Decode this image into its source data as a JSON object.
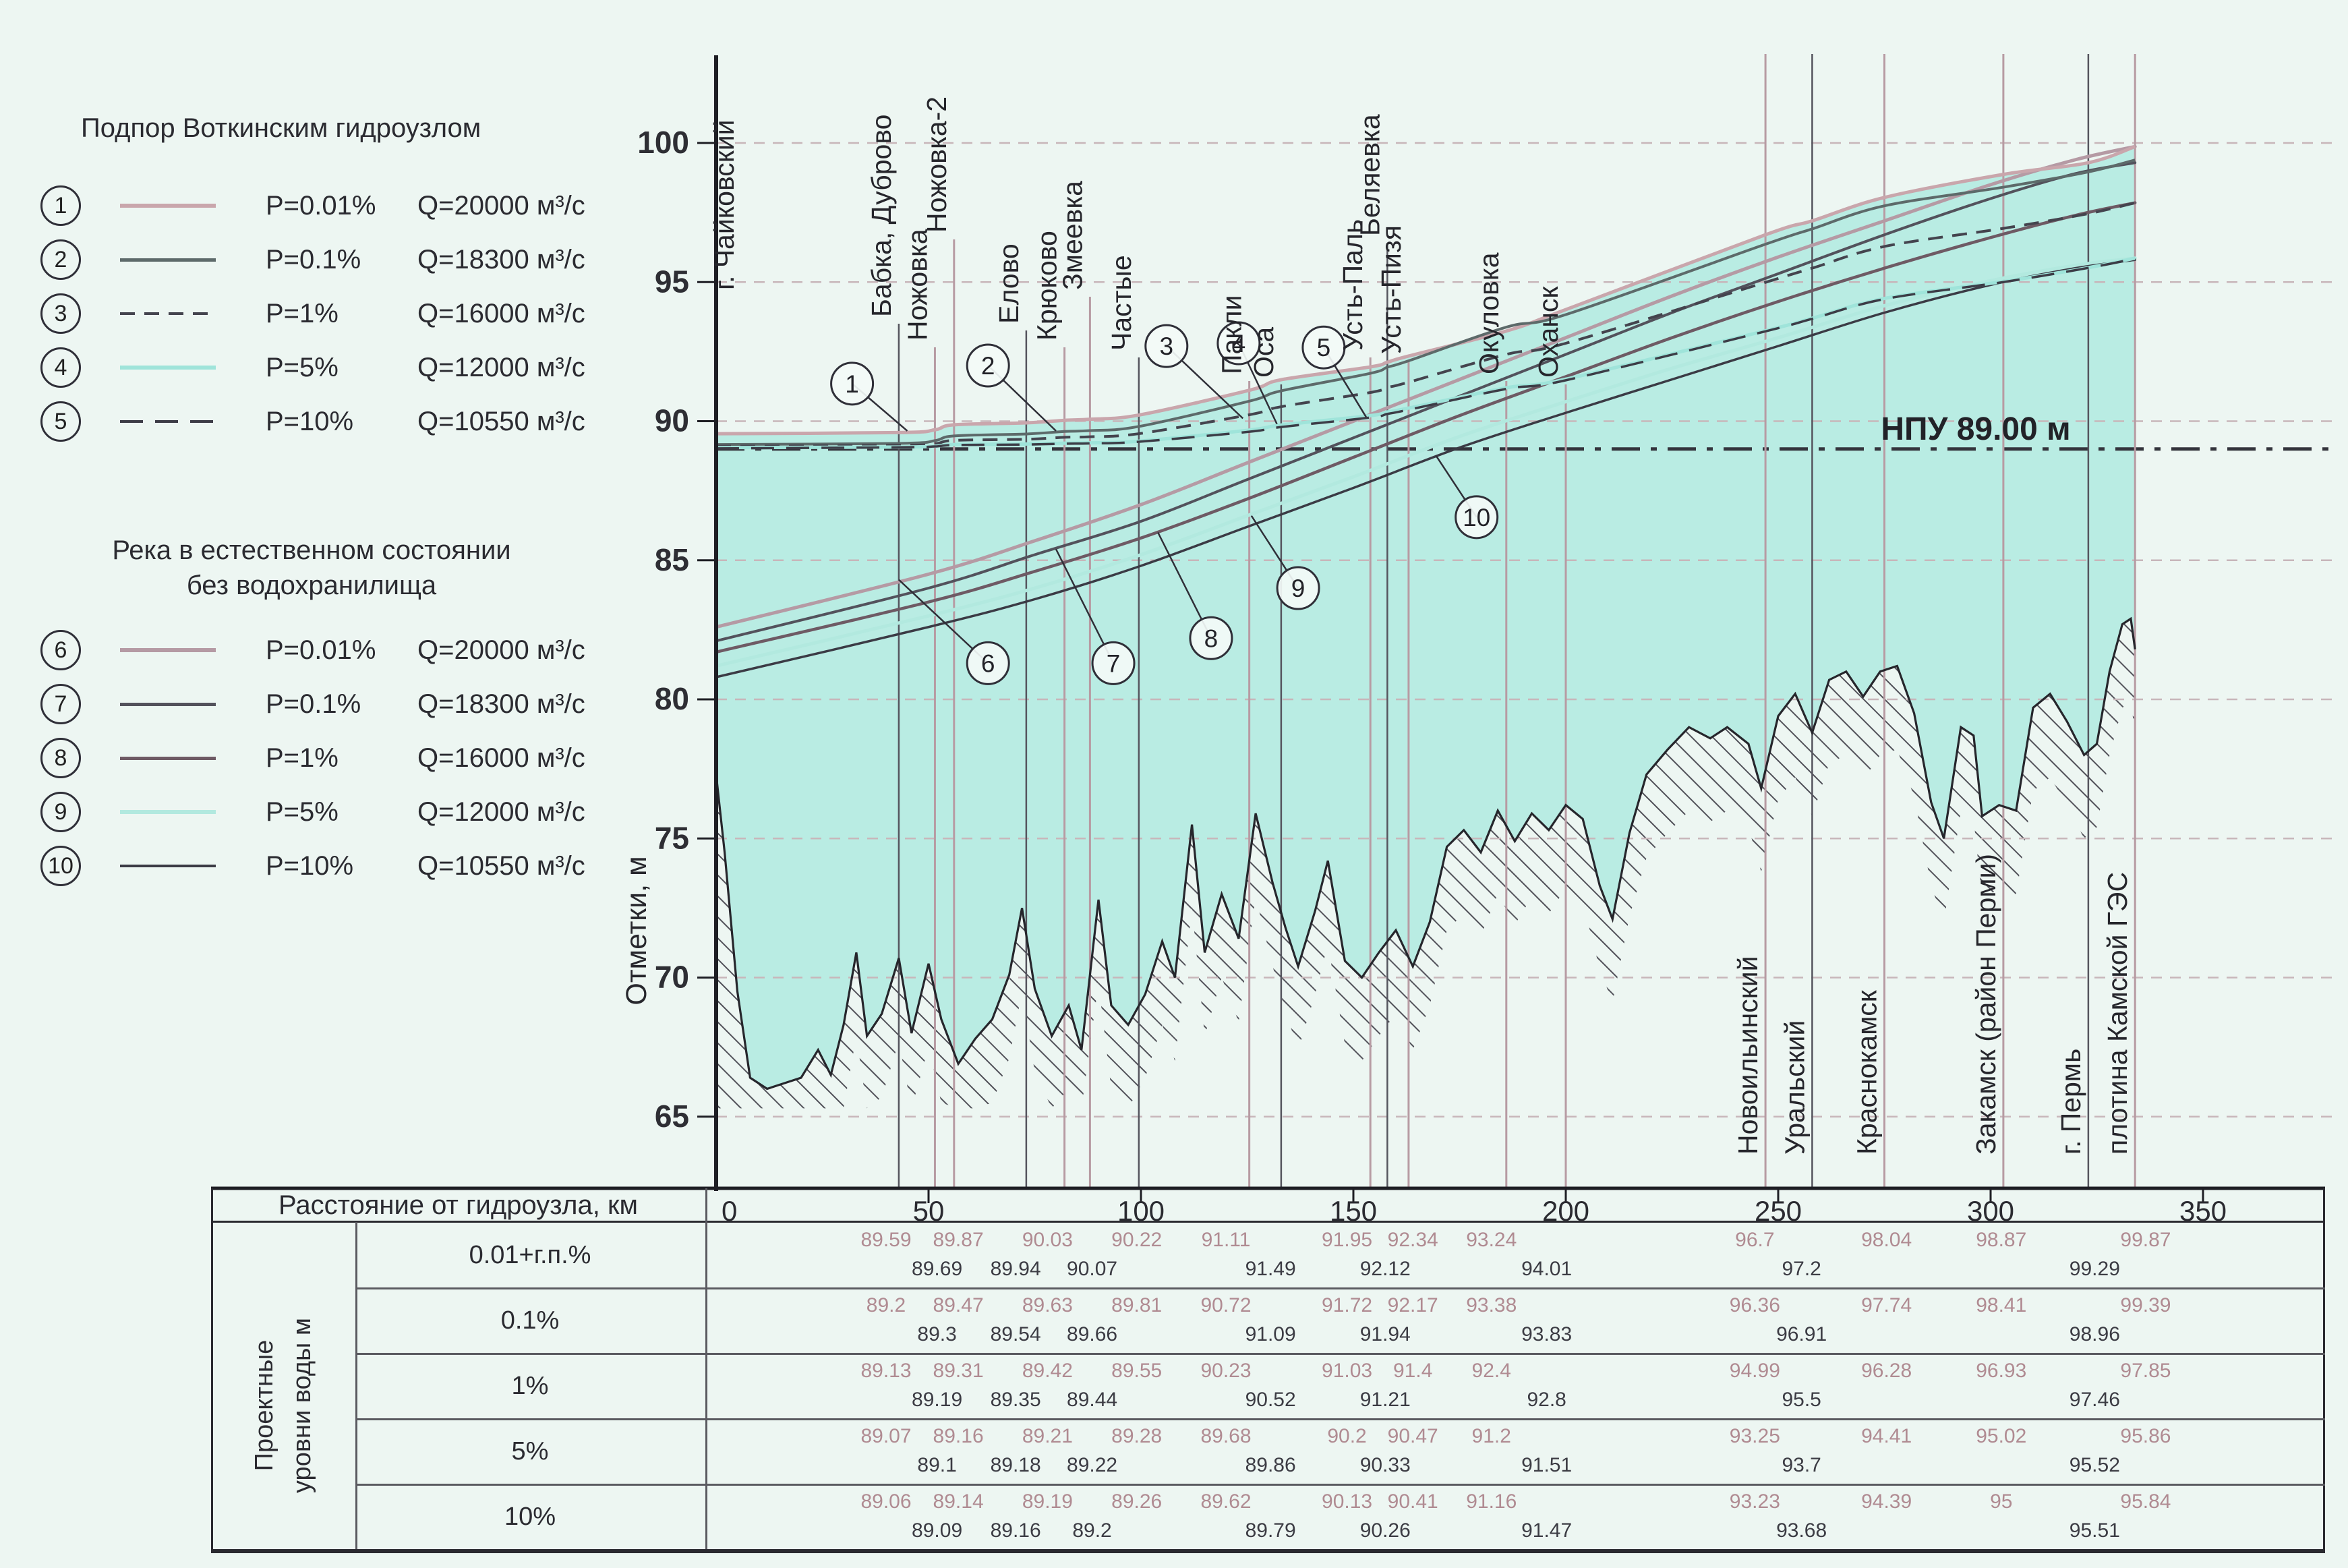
{
  "page": {
    "background": "#edf6f2"
  },
  "legend_backwater": {
    "title": "Подпор Воткинским гидроузлом",
    "items": [
      {
        "num": "1",
        "p": "P=0.01%",
        "q": "Q=20000 м³/с",
        "color": "#c9a6ac",
        "dash": null,
        "thick": 6
      },
      {
        "num": "2",
        "p": "P=0.1%",
        "q": "Q=18300 м³/с",
        "color": "#5d6a6a",
        "dash": null,
        "thick": 5
      },
      {
        "num": "3",
        "p": "P=1%",
        "q": "Q=16000 м³/с",
        "color": "#44444e",
        "dash": "22 14",
        "thick": 4
      },
      {
        "num": "4",
        "p": "P=5%",
        "q": "Q=12000 м³/с",
        "color": "#9fe4da",
        "dash": null,
        "thick": 6
      },
      {
        "num": "5",
        "p": "P=10%",
        "q": "Q=10550 м³/с",
        "color": "#3c3c46",
        "dash": "34 18",
        "thick": 4
      }
    ]
  },
  "legend_natural": {
    "title_line1": "Река в естественном состоянии",
    "title_line2": "без водохранилища",
    "items": [
      {
        "num": "6",
        "p": "P=0.01%",
        "q": "Q=20000 м³/с",
        "color": "#b59aa4",
        "dash": null,
        "thick": 6
      },
      {
        "num": "7",
        "p": "P=0.1%",
        "q": "Q=18300 м³/с",
        "color": "#53525c",
        "dash": null,
        "thick": 5
      },
      {
        "num": "8",
        "p": "P=1%",
        "q": "Q=16000 м³/с",
        "color": "#6e5a64",
        "dash": null,
        "thick": 5
      },
      {
        "num": "9",
        "p": "P=5%",
        "q": "Q=12000 м³/с",
        "color": "#b2e9df",
        "dash": null,
        "thick": 6
      },
      {
        "num": "10",
        "p": "P=10%",
        "q": "Q=10550 м³/с",
        "color": "#3b3b45",
        "dash": null,
        "thick": 4
      }
    ]
  },
  "chart_data": {
    "type": "line",
    "ylabel": "Отметки, м",
    "ylim": [
      65,
      100
    ],
    "xlim": [
      0,
      350
    ],
    "y_ticks": [
      65,
      70,
      75,
      80,
      85,
      90,
      95,
      100
    ],
    "x_ticks": [
      0,
      50,
      100,
      150,
      200,
      250,
      300,
      350
    ],
    "grid": "horizontal-dashed",
    "legend_position": "left",
    "npu_line": {
      "label": "НПУ 89.00 м",
      "elevation": 89.0
    },
    "station_left": {
      "name": "г. Чайковский",
      "km": 0,
      "label_bottom": 430
    },
    "stations_top": [
      {
        "name": "Бабка, Дуброво",
        "km": 43,
        "line": "dark",
        "label_bottom": 470
      },
      {
        "name": "Ножовка",
        "km": 51.5,
        "line": "mauve",
        "label_bottom": 505
      },
      {
        "name": "Ножовка-2",
        "km": 56,
        "line": "mauve",
        "label_bottom": 345
      },
      {
        "name": "Елово",
        "km": 73,
        "line": "dark",
        "label_bottom": 480
      },
      {
        "name": "Крюково",
        "km": 82,
        "line": "mauve",
        "label_bottom": 505
      },
      {
        "name": "Змеевка",
        "km": 88,
        "line": "mauve",
        "label_bottom": 430
      },
      {
        "name": "Частые",
        "km": 99.5,
        "line": "dark",
        "label_bottom": 520
      },
      {
        "name": "Пакли",
        "km": 125.5,
        "line": "mauve",
        "label_bottom": 555
      },
      {
        "name": "Оса",
        "km": 133,
        "line": "dark",
        "label_bottom": 560
      },
      {
        "name": "Усть-Паль",
        "km": 154,
        "line": "mauve",
        "label_bottom": 520
      },
      {
        "name": "Беляевка",
        "km": 158,
        "line": "dark",
        "label_bottom": 350
      },
      {
        "name": "Усть-Пизя",
        "km": 163,
        "line": "mauve",
        "label_bottom": 525
      },
      {
        "name": "Окуловка",
        "km": 186,
        "line": "mauve",
        "label_bottom": 555
      },
      {
        "name": "Оханск",
        "km": 200,
        "line": "mauve",
        "label_bottom": 560
      }
    ],
    "stations_right": [
      {
        "name": "Новоильинский",
        "km": 247,
        "line": "mauve"
      },
      {
        "name": "Уральский",
        "km": 258,
        "line": "dark"
      },
      {
        "name": "Краснокамск",
        "km": 275,
        "line": "mauve"
      },
      {
        "name": "Закамск (район Перми)",
        "km": 303,
        "line": "mauve"
      },
      {
        "name": "г. Пермь",
        "km": 323,
        "line": "dark"
      },
      {
        "name": "плотина Камской ГЭС",
        "km": 334,
        "line": "mauve"
      }
    ],
    "station_km": [
      43,
      51.5,
      56,
      73,
      82,
      88,
      99.5,
      125.5,
      133,
      154,
      158,
      163,
      186,
      200,
      247,
      258,
      275,
      303,
      323,
      334
    ],
    "backwater_series": [
      {
        "id": 1,
        "p": "P=0.01%",
        "q": 20000,
        "color": "#c9a6ac",
        "dash": null,
        "width": 5,
        "start_elev": 89.55,
        "station_values": [
          89.59,
          89.69,
          89.87,
          89.94,
          90.03,
          90.07,
          90.22,
          91.11,
          91.49,
          91.95,
          92.12,
          92.34,
          93.24,
          94.01,
          96.7,
          97.2,
          98.04,
          98.87,
          99.29,
          99.87
        ]
      },
      {
        "id": 2,
        "p": "P=0.1%",
        "q": 18300,
        "color": "#5d6a6a",
        "dash": null,
        "width": 4,
        "start_elev": 89.16,
        "station_values": [
          89.2,
          89.3,
          89.47,
          89.54,
          89.63,
          89.66,
          89.81,
          90.72,
          91.09,
          91.72,
          91.94,
          92.17,
          93.38,
          93.83,
          96.36,
          96.91,
          97.74,
          98.41,
          98.96,
          99.39
        ]
      },
      {
        "id": 3,
        "p": "P=1%",
        "q": 16000,
        "color": "#44444e",
        "dash": "22 14",
        "width": 4,
        "start_elev": 89.1,
        "station_values": [
          89.13,
          89.19,
          89.31,
          89.35,
          89.42,
          89.44,
          89.55,
          90.23,
          90.52,
          91.03,
          91.21,
          91.4,
          92.4,
          92.8,
          94.99,
          95.5,
          96.28,
          96.93,
          97.46,
          97.85
        ]
      },
      {
        "id": 4,
        "p": "P=5%",
        "q": 12000,
        "color": "#9fe4da",
        "dash": null,
        "width": 5,
        "start_elev": 89.05,
        "station_values": [
          89.07,
          89.1,
          89.16,
          89.18,
          89.21,
          89.22,
          89.28,
          89.68,
          89.86,
          90.2,
          90.33,
          90.47,
          91.2,
          91.51,
          93.25,
          93.7,
          94.41,
          95.02,
          95.52,
          95.86
        ]
      },
      {
        "id": 5,
        "p": "P=10%",
        "q": 10550,
        "color": "#3c3c46",
        "dash": "34 18",
        "width": 3.5,
        "start_elev": 89.02,
        "station_values": [
          89.06,
          89.09,
          89.14,
          89.16,
          89.19,
          89.2,
          89.26,
          89.62,
          89.79,
          90.13,
          90.26,
          90.41,
          91.16,
          91.47,
          93.23,
          93.68,
          94.39,
          95.0,
          95.51,
          95.84
        ]
      }
    ],
    "natural_series": [
      {
        "id": 6,
        "p": "P=0.01%",
        "q": 20000,
        "color": "#b59aa4",
        "width": 5,
        "x": [
          0,
          50,
          75,
          100,
          125,
          150,
          175,
          200,
          225,
          250,
          275,
          300,
          320,
          334
        ],
        "values": [
          82.6,
          84.5,
          85.7,
          87.0,
          88.5,
          90.0,
          91.5,
          93.0,
          94.5,
          95.9,
          97.2,
          98.5,
          99.4,
          99.87
        ]
      },
      {
        "id": 7,
        "p": "P=0.1%",
        "q": 18300,
        "color": "#53525c",
        "width": 4,
        "x": [
          0,
          50,
          75,
          100,
          125,
          150,
          175,
          200,
          225,
          250,
          275,
          300,
          320,
          334
        ],
        "values": [
          82.1,
          84.0,
          85.2,
          86.4,
          87.9,
          89.4,
          90.9,
          92.4,
          93.9,
          95.3,
          96.7,
          98.0,
          98.9,
          99.29
        ]
      },
      {
        "id": 8,
        "p": "P=1%",
        "q": 16000,
        "color": "#6e5a64",
        "width": 4.5,
        "x": [
          0,
          50,
          75,
          100,
          125,
          150,
          175,
          200,
          225,
          250,
          275,
          300,
          320,
          334
        ],
        "values": [
          81.7,
          83.5,
          84.6,
          85.8,
          87.2,
          88.7,
          90.2,
          91.6,
          93.0,
          94.3,
          95.5,
          96.6,
          97.4,
          97.85
        ]
      },
      {
        "id": 9,
        "p": "P=5%",
        "q": 12000,
        "color": "#b2e9df",
        "width": 5,
        "x": [
          0,
          50,
          75,
          100,
          125,
          150,
          175,
          200,
          225,
          250,
          275,
          300,
          320,
          334
        ],
        "values": [
          81.2,
          83.0,
          84.0,
          85.2,
          86.6,
          88.0,
          89.45,
          90.7,
          91.9,
          93.0,
          94.15,
          95.05,
          95.6,
          95.86
        ]
      },
      {
        "id": 10,
        "p": "P=10%",
        "q": 10550,
        "color": "#3b3b45",
        "width": 3.5,
        "x": [
          0,
          50,
          75,
          100,
          125,
          150,
          175,
          200,
          225,
          250,
          275,
          300,
          320,
          334
        ],
        "values": [
          80.8,
          82.6,
          83.6,
          84.8,
          86.2,
          87.6,
          89.05,
          90.3,
          91.5,
          92.7,
          93.9,
          94.9,
          95.5,
          95.8
        ]
      }
    ],
    "bottom_profile": {
      "km": [
        0,
        2,
        5,
        8,
        12,
        16,
        20,
        24,
        27,
        30,
        33,
        35.5,
        39,
        43,
        46,
        50,
        53,
        57,
        61,
        65,
        69,
        72,
        75,
        79,
        83,
        86,
        90,
        93,
        97,
        101,
        105,
        108,
        112,
        115,
        119,
        123,
        127,
        131,
        134,
        137,
        141,
        144,
        148,
        152,
        156,
        160,
        164,
        168,
        172,
        176,
        180,
        184,
        188,
        192,
        196,
        200,
        204,
        208,
        211,
        215,
        219,
        224,
        229,
        234,
        238,
        243,
        246,
        250,
        254,
        258,
        262,
        266,
        270,
        274,
        278,
        282,
        286,
        289,
        293,
        296,
        298,
        302,
        306,
        310,
        314,
        318,
        322,
        325,
        328,
        331,
        333,
        334
      ],
      "elev": [
        77.3,
        74.5,
        69.5,
        66.4,
        66.0,
        66.2,
        66.4,
        67.4,
        66.5,
        68.3,
        70.9,
        67.9,
        68.7,
        70.7,
        68.0,
        70.5,
        68.5,
        66.9,
        67.8,
        68.5,
        70.1,
        72.5,
        69.6,
        67.9,
        69.0,
        67.4,
        72.8,
        69.0,
        68.3,
        69.4,
        71.3,
        70.0,
        75.5,
        70.9,
        73.0,
        71.4,
        75.9,
        73.4,
        71.8,
        70.4,
        72.4,
        74.2,
        70.6,
        70.0,
        70.9,
        71.7,
        70.4,
        72.0,
        74.7,
        75.3,
        74.5,
        76.0,
        74.9,
        75.9,
        75.3,
        76.2,
        75.7,
        73.3,
        72.1,
        75.2,
        77.3,
        78.2,
        79.0,
        78.6,
        79.0,
        78.4,
        76.8,
        79.4,
        80.2,
        78.8,
        80.7,
        81.0,
        80.1,
        81.0,
        81.2,
        79.5,
        76.3,
        75.0,
        79.0,
        78.7,
        75.8,
        76.2,
        76.0,
        79.7,
        80.2,
        79.2,
        78.0,
        78.4,
        81.0,
        82.7,
        82.9,
        81.8
      ]
    },
    "annotations": [
      {
        "num": "1",
        "km": 32,
        "elev": 91.35,
        "to_km": 45,
        "to_elev": 89.65
      },
      {
        "num": "2",
        "km": 64,
        "elev": 92.0,
        "to_km": 80,
        "to_elev": 89.65
      },
      {
        "num": "3",
        "km": 106,
        "elev": 92.7,
        "to_km": 124,
        "to_elev": 90.1
      },
      {
        "num": "4",
        "km": 123,
        "elev": 92.8,
        "to_km": 132,
        "to_elev": 89.9
      },
      {
        "num": "5",
        "km": 143,
        "elev": 92.65,
        "to_km": 153,
        "to_elev": 90.15
      },
      {
        "num": "6",
        "km": 64,
        "elev": 81.3,
        "to_km": 43,
        "to_elev": 84.3
      },
      {
        "num": "7",
        "km": 93.5,
        "elev": 81.3,
        "to_km": 80,
        "to_elev": 85.4
      },
      {
        "num": "8",
        "km": 116.5,
        "elev": 82.2,
        "to_km": 104,
        "to_elev": 86.0
      },
      {
        "num": "9",
        "km": 137,
        "elev": 84.0,
        "to_km": 126,
        "to_elev": 86.6
      },
      {
        "num": "10",
        "km": 179,
        "elev": 86.55,
        "to_km": 169.5,
        "to_elev": 88.75
      }
    ],
    "colors": {
      "water_fill": "#b9ece3",
      "grid": "#c8b6ba",
      "mauve_line": "#b79ba3",
      "dark_line": "#55555e",
      "terrain": "#26262c",
      "npu": "#34343c",
      "axis": "#1e1e24"
    }
  },
  "table": {
    "header_label": "Расстояние от гидроузла, км",
    "side_label": [
      "Проектные",
      "уровни воды м"
    ],
    "axis_values": [
      "0",
      "50",
      "100",
      "150",
      "200",
      "250",
      "300",
      "350"
    ],
    "pink_km": [
      40,
      57,
      78,
      99,
      120,
      148.5,
      164,
      182.5,
      244.5,
      275.5,
      302.5,
      336.5
    ],
    "dark_km": [
      52,
      70.5,
      88.5,
      130.5,
      157.5,
      195.5,
      255.5,
      324.5
    ],
    "rows": [
      {
        "label": "0.01+г.п.%",
        "pink": [
          "89.59",
          "89.87",
          "90.03",
          "90.22",
          "91.11",
          "91.95",
          "92.34",
          "93.24",
          "96.7",
          "98.04",
          "98.87",
          "99.87"
        ],
        "dark": [
          "89.69",
          "89.94",
          "90.07",
          "91.49",
          "92.12",
          "94.01",
          "97.2",
          "99.29"
        ]
      },
      {
        "label": "0.1%",
        "pink": [
          "89.2",
          "89.47",
          "89.63",
          "89.81",
          "90.72",
          "91.72",
          "92.17",
          "93.38",
          "96.36",
          "97.74",
          "98.41",
          "99.39"
        ],
        "dark": [
          "89.3",
          "89.54",
          "89.66",
          "91.09",
          "91.94",
          "93.83",
          "96.91",
          "98.96"
        ]
      },
      {
        "label": "1%",
        "pink": [
          "89.13",
          "89.31",
          "89.42",
          "89.55",
          "90.23",
          "91.03",
          "91.4",
          "92.4",
          "94.99",
          "96.28",
          "96.93",
          "97.85"
        ],
        "dark": [
          "89.19",
          "89.35",
          "89.44",
          "90.52",
          "91.21",
          "92.8",
          "95.5",
          "97.46"
        ]
      },
      {
        "label": "5%",
        "pink": [
          "89.07",
          "89.16",
          "89.21",
          "89.28",
          "89.68",
          "90.2",
          "90.47",
          "91.2",
          "93.25",
          "94.41",
          "95.02",
          "95.86"
        ],
        "dark": [
          "89.1",
          "89.18",
          "89.22",
          "89.86",
          "90.33",
          "91.51",
          "93.7",
          "95.52"
        ]
      },
      {
        "label": "10%",
        "pink": [
          "89.06",
          "89.14",
          "89.19",
          "89.26",
          "89.62",
          "90.13",
          "90.41",
          "91.16",
          "93.23",
          "94.39",
          "95",
          "95.84"
        ],
        "dark": [
          "89.09",
          "89.16",
          "89.2",
          "89.79",
          "90.26",
          "91.47",
          "93.68",
          "95.51"
        ]
      }
    ]
  }
}
